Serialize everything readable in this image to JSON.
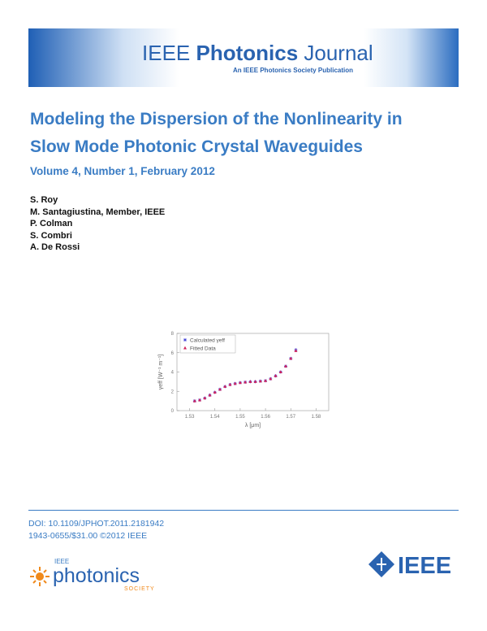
{
  "header": {
    "journal_prefix": "IEEE",
    "journal_name": "Photonics",
    "journal_suffix": "Journal",
    "tagline": "An IEEE Photonics Society Publication"
  },
  "title": [
    "Modeling the Dispersion of the Nonlinearity in",
    "Slow Mode Photonic Crystal Waveguides"
  ],
  "volume": "Volume 4, Number 1, February 2012",
  "authors": [
    "S. Roy",
    "M. Santagiustina, Member, IEEE",
    "P. Colman",
    "S. Combri",
    "A. De Rossi"
  ],
  "figure": {
    "type": "scatter",
    "x_label": "λ [μm]",
    "y_label": "γeff [W⁻¹ m⁻¹]",
    "xlim": [
      1.525,
      1.585
    ],
    "xticks": [
      1.53,
      1.54,
      1.55,
      1.56,
      1.57,
      1.58
    ],
    "ylim": [
      0,
      8
    ],
    "yticks": [
      0,
      2,
      4,
      6,
      8
    ],
    "x": [
      1.532,
      1.534,
      1.536,
      1.538,
      1.54,
      1.542,
      1.544,
      1.546,
      1.548,
      1.55,
      1.552,
      1.554,
      1.556,
      1.558,
      1.56,
      1.562,
      1.564,
      1.566,
      1.568,
      1.57,
      1.572
    ],
    "series": [
      {
        "name": "Calculated γeff",
        "color": "#4a4ad8",
        "marker": "star",
        "values": [
          1.0,
          1.1,
          1.3,
          1.6,
          1.9,
          2.2,
          2.5,
          2.7,
          2.8,
          2.9,
          2.95,
          3.0,
          3.0,
          3.05,
          3.1,
          3.3,
          3.6,
          4.0,
          4.6,
          5.4,
          6.3
        ]
      },
      {
        "name": "Fitted Data",
        "color": "#d0205a",
        "marker": "triangle",
        "values": [
          1.0,
          1.1,
          1.3,
          1.6,
          1.9,
          2.2,
          2.5,
          2.7,
          2.8,
          2.9,
          2.95,
          3.0,
          3.0,
          3.05,
          3.1,
          3.3,
          3.6,
          4.0,
          4.6,
          5.4,
          6.2
        ]
      }
    ]
  },
  "footer": {
    "doi": "DOI: 10.1109/JPHOT.2011.2181942",
    "issn": "1943-0655/$31.00 ©2012 IEEE"
  },
  "logos": {
    "society_ieee": "IEEE",
    "society_name": "photonics",
    "society_word": "SOCIETY",
    "ieee": "IEEE"
  }
}
